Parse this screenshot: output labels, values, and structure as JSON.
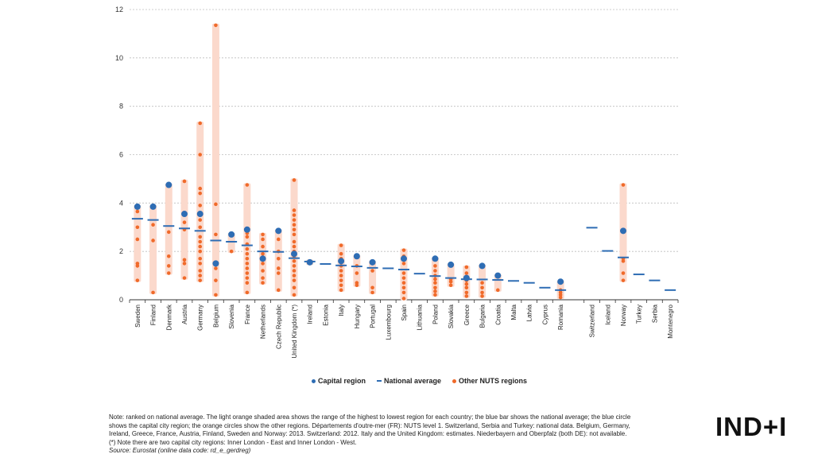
{
  "chart_data": {
    "type": "scatter",
    "ylim": [
      0,
      12
    ],
    "yticks": [
      0,
      2,
      4,
      6,
      8,
      10,
      12
    ],
    "grid": true,
    "colors": {
      "capital": "#2e6db4",
      "national": "#2e6db4",
      "other": "#f06a2a",
      "range": "#fbd9cc"
    },
    "groups": [
      {
        "country": "Sweden",
        "min": 0.8,
        "max": 3.85,
        "national": 3.35,
        "capital": 3.85,
        "others": [
          0.8,
          1.4,
          1.5,
          2.5,
          3.0,
          3.65
        ]
      },
      {
        "country": "Finland",
        "min": 0.3,
        "max": 3.85,
        "national": 3.3,
        "capital": 3.85,
        "others": [
          0.3,
          2.45,
          3.1
        ]
      },
      {
        "country": "Denmark",
        "min": 1.1,
        "max": 4.75,
        "national": 3.05,
        "capital": 4.75,
        "others": [
          1.1,
          1.4,
          1.8,
          2.8
        ]
      },
      {
        "country": "Austria",
        "min": 0.9,
        "max": 4.9,
        "national": 2.95,
        "capital": 3.55,
        "others": [
          0.9,
          1.5,
          1.65,
          2.9,
          3.2,
          4.9
        ]
      },
      {
        "country": "Germany",
        "min": 0.8,
        "max": 7.3,
        "national": 2.85,
        "capital": 3.55,
        "others": [
          0.8,
          1.0,
          1.2,
          1.5,
          1.7,
          2.0,
          2.2,
          2.4,
          2.6,
          3.0,
          3.3,
          3.9,
          4.4,
          4.6,
          6.0,
          7.3
        ]
      },
      {
        "country": "Belgium",
        "min": 0.2,
        "max": 11.35,
        "national": 2.45,
        "capital": 1.5,
        "others": [
          0.2,
          0.8,
          1.3,
          2.7,
          3.95,
          11.35
        ]
      },
      {
        "country": "Slovenia",
        "min": 2.0,
        "max": 2.7,
        "national": 2.4,
        "capital": 2.7,
        "others": [
          2.0
        ]
      },
      {
        "country": "France",
        "min": 0.3,
        "max": 4.75,
        "national": 2.25,
        "capital": 2.9,
        "others": [
          0.3,
          0.7,
          0.9,
          1.1,
          1.3,
          1.5,
          1.7,
          1.9,
          2.1,
          2.3,
          2.6,
          2.75,
          4.75
        ]
      },
      {
        "country": "Netherlands",
        "min": 0.7,
        "max": 2.7,
        "national": 2.0,
        "capital": 1.7,
        "others": [
          0.7,
          0.9,
          1.2,
          1.5,
          1.9,
          2.2,
          2.5,
          2.7
        ]
      },
      {
        "country": "Czech Republic",
        "min": 0.4,
        "max": 2.85,
        "national": 1.98,
        "capital": 2.85,
        "others": [
          0.4,
          1.1,
          1.3,
          1.7,
          2.0,
          2.5
        ]
      },
      {
        "country": "United Kingdom (*)",
        "min": 0.2,
        "max": 4.95,
        "national": 1.72,
        "capital": 1.9,
        "others": [
          0.2,
          0.5,
          0.8,
          1.0,
          1.2,
          1.4,
          1.6,
          1.8,
          2.0,
          2.2,
          2.4,
          2.7,
          2.9,
          3.1,
          3.3,
          3.5,
          3.7,
          4.95
        ]
      },
      {
        "country": "Ireland",
        "min": 1.5,
        "max": 1.6,
        "national": 1.58,
        "capital": 1.55,
        "others": []
      },
      {
        "country": "Estonia",
        "min": null,
        "max": null,
        "national": 1.48,
        "capital": null,
        "others": []
      },
      {
        "country": "Italy",
        "min": 0.4,
        "max": 2.25,
        "national": 1.42,
        "capital": 1.6,
        "others": [
          0.4,
          0.6,
          0.8,
          1.0,
          1.2,
          1.4,
          1.7,
          1.9,
          2.25
        ]
      },
      {
        "country": "Hungary",
        "min": 0.6,
        "max": 1.8,
        "national": 1.38,
        "capital": 1.8,
        "others": [
          0.6,
          0.7,
          1.1,
          1.4
        ]
      },
      {
        "country": "Portugal",
        "min": 0.3,
        "max": 1.55,
        "national": 1.32,
        "capital": 1.55,
        "others": [
          0.3,
          0.5,
          1.2
        ]
      },
      {
        "country": "Luxembourg",
        "min": null,
        "max": null,
        "national": 1.3,
        "capital": null,
        "others": []
      },
      {
        "country": "Spain",
        "min": 0.05,
        "max": 2.05,
        "national": 1.25,
        "capital": 1.7,
        "others": [
          0.05,
          0.3,
          0.5,
          0.7,
          0.9,
          1.1,
          1.5,
          1.8,
          2.05
        ]
      },
      {
        "country": "Lithuania",
        "min": null,
        "max": null,
        "national": 1.08,
        "capital": null,
        "others": []
      },
      {
        "country": "Poland",
        "min": 0.2,
        "max": 1.7,
        "national": 0.98,
        "capital": 1.7,
        "others": [
          0.2,
          0.35,
          0.5,
          0.7,
          0.85,
          1.0,
          1.2,
          1.4
        ]
      },
      {
        "country": "Slovakia",
        "min": 0.6,
        "max": 1.45,
        "national": 0.9,
        "capital": 1.45,
        "others": [
          0.6,
          0.75,
          0.85
        ]
      },
      {
        "country": "Greece",
        "min": 0.15,
        "max": 1.35,
        "national": 0.85,
        "capital": 0.9,
        "others": [
          0.15,
          0.3,
          0.5,
          0.65,
          0.8,
          1.1,
          1.35
        ]
      },
      {
        "country": "Bulgaria",
        "min": 0.15,
        "max": 1.4,
        "national": 0.84,
        "capital": 1.4,
        "others": [
          0.15,
          0.3,
          0.5,
          0.7
        ]
      },
      {
        "country": "Croatia",
        "min": 0.4,
        "max": 1.0,
        "national": 0.82,
        "capital": 1.0,
        "others": [
          0.4
        ]
      },
      {
        "country": "Malta",
        "min": null,
        "max": null,
        "national": 0.78,
        "capital": null,
        "others": []
      },
      {
        "country": "Latvia",
        "min": null,
        "max": null,
        "national": 0.7,
        "capital": null,
        "others": []
      },
      {
        "country": "Cyprus",
        "min": null,
        "max": null,
        "national": 0.5,
        "capital": null,
        "others": []
      },
      {
        "country": "Romania",
        "min": 0.1,
        "max": 0.75,
        "national": 0.4,
        "capital": 0.75,
        "others": [
          0.1,
          0.2,
          0.3,
          0.4
        ]
      },
      {
        "country": "Switzerland",
        "min": null,
        "max": null,
        "national": 2.98,
        "capital": null,
        "others": []
      },
      {
        "country": "Iceland",
        "min": null,
        "max": null,
        "national": 2.02,
        "capital": null,
        "others": []
      },
      {
        "country": "Norway",
        "min": 0.8,
        "max": 4.75,
        "national": 1.75,
        "capital": 2.85,
        "others": [
          0.8,
          1.1,
          1.6,
          1.7,
          4.75
        ]
      },
      {
        "country": "Turkey",
        "min": null,
        "max": null,
        "national": 1.05,
        "capital": null,
        "others": []
      },
      {
        "country": "Serbia",
        "min": null,
        "max": null,
        "national": 0.8,
        "capital": null,
        "others": []
      },
      {
        "country": "Montenegro",
        "min": null,
        "max": null,
        "national": 0.4,
        "capital": null,
        "others": []
      }
    ],
    "gap_after_index": 27,
    "legend": [
      {
        "label": "Capital region",
        "kind": "capital"
      },
      {
        "label": "National average",
        "kind": "national"
      },
      {
        "label": "Other NUTS regions",
        "kind": "other"
      }
    ],
    "legend_placement": "bottom"
  },
  "notes": {
    "line1": "Note: ranked on national average. The light orange shaded area shows the range of the highest to lowest region for each country; the blue bar shows the national average; the blue circle",
    "line2": "shows the capital city region; the orange circles show the other regions. Départements d'outre-mer (FR): NUTS level 1. Switzerland, Serbia and Turkey: national data. Belgium, Germany,",
    "line3": "Ireland, Greece, France, Austria, Finland, Sweden and Norway: 2013. Switzerland: 2012. Italy and the United Kingdom: estimates. Niederbayern and Oberpfalz (both DE): not available.",
    "line4": "(*) Note there are two capital city regions: Inner London - East and Inner London - West.",
    "source": "Source:  Eurostat (online data code: rd_e_gerdreg)"
  },
  "logo": "IND+I"
}
